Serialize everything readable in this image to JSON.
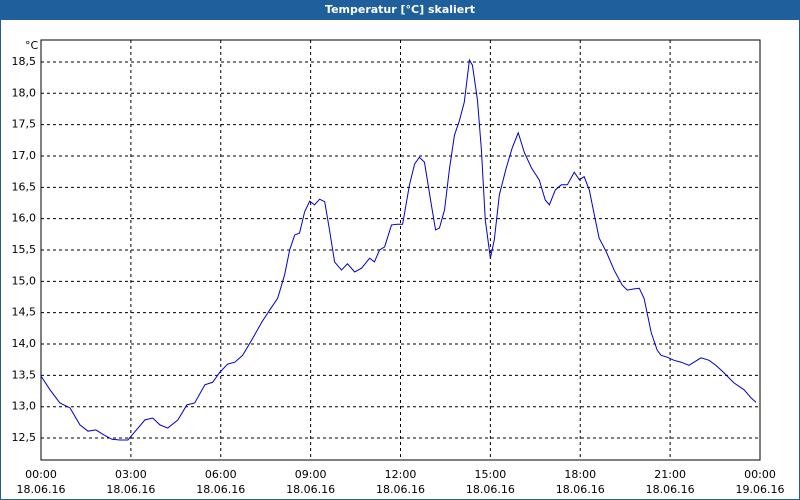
{
  "chart_data": {
    "type": "line",
    "title": "Temperatur [°C] skaliert",
    "y_unit": "°C",
    "x": [
      0,
      0.3,
      0.63,
      0.97,
      1.3,
      1.57,
      1.83,
      2.1,
      2.37,
      2.63,
      2.9,
      3.13,
      3.47,
      3.73,
      3.97,
      4.23,
      4.57,
      4.87,
      5.13,
      5.47,
      5.73,
      5.97,
      6.23,
      6.47,
      6.73,
      7.03,
      7.37,
      7.63,
      7.9,
      8.13,
      8.3,
      8.47,
      8.63,
      8.8,
      8.97,
      9.13,
      9.3,
      9.47,
      9.63,
      9.8,
      10.03,
      10.23,
      10.47,
      10.7,
      10.97,
      11.13,
      11.3,
      11.47,
      11.7,
      11.9,
      12.07,
      12.3,
      12.47,
      12.63,
      12.8,
      13.03,
      13.17,
      13.3,
      13.47,
      13.63,
      13.8,
      13.97,
      14.13,
      14.3,
      14.4,
      14.57,
      14.7,
      14.83,
      15,
      15.13,
      15.3,
      15.53,
      15.73,
      15.93,
      16.13,
      16.37,
      16.63,
      16.83,
      16.97,
      17.17,
      17.37,
      17.57,
      17.8,
      17.97,
      18.13,
      18.3,
      18.47,
      18.63,
      18.87,
      19.13,
      19.4,
      19.57,
      19.8,
      19.97,
      20.13,
      20.37,
      20.57,
      20.7,
      20.9,
      21.13,
      21.37,
      21.63,
      21.8,
      22.03,
      22.3,
      22.53,
      22.8,
      23.13,
      23.47,
      23.7,
      23.87
    ],
    "series": [
      {
        "color": "#0000cc",
        "values": [
          13.49,
          13.27,
          13.06,
          12.98,
          12.71,
          12.61,
          12.63,
          12.55,
          12.48,
          12.47,
          12.47,
          12.6,
          12.79,
          12.82,
          12.71,
          12.66,
          12.79,
          13.03,
          13.06,
          13.35,
          13.39,
          13.55,
          13.68,
          13.71,
          13.82,
          14.06,
          14.35,
          14.54,
          14.73,
          15.1,
          15.5,
          15.74,
          15.77,
          16.11,
          16.28,
          16.22,
          16.31,
          16.27,
          15.82,
          15.31,
          15.18,
          15.28,
          15.15,
          15.21,
          15.37,
          15.31,
          15.5,
          15.55,
          15.9,
          15.91,
          15.91,
          16.54,
          16.87,
          16.98,
          16.9,
          16.22,
          15.82,
          15.85,
          16.14,
          16.78,
          17.33,
          17.57,
          17.86,
          18.53,
          18.45,
          17.89,
          17.1,
          15.98,
          15.37,
          15.66,
          16.38,
          16.81,
          17.13,
          17.37,
          17.06,
          16.81,
          16.62,
          16.3,
          16.22,
          16.46,
          16.54,
          16.54,
          16.74,
          16.62,
          16.67,
          16.46,
          16.06,
          15.69,
          15.47,
          15.18,
          14.94,
          14.86,
          14.88,
          14.89,
          14.73,
          14.18,
          13.9,
          13.82,
          13.79,
          13.74,
          13.71,
          13.66,
          13.71,
          13.78,
          13.74,
          13.66,
          13.54,
          13.38,
          13.27,
          13.14,
          13.07
        ]
      }
    ],
    "xlim": [
      0,
      24
    ],
    "xticks": [
      {
        "value": 0,
        "label": "00:00\n18.06.16"
      },
      {
        "value": 3,
        "label": "03:00\n18.06.16"
      },
      {
        "value": 6,
        "label": "06:00\n18.06.16"
      },
      {
        "value": 9,
        "label": "09:00\n18.06.16"
      },
      {
        "value": 12,
        "label": "12:00\n18.06.16"
      },
      {
        "value": 15,
        "label": "15:00\n18.06.16"
      },
      {
        "value": 18,
        "label": "18:00\n18.06.16"
      },
      {
        "value": 21,
        "label": "21:00\n18.06.16"
      },
      {
        "value": 24,
        "label": "00:00\n19.06.16"
      }
    ],
    "ylim": [
      12.15,
      18.85
    ],
    "yticks": [
      {
        "value": 12.5,
        "label": "12,5"
      },
      {
        "value": 13,
        "label": "13,0"
      },
      {
        "value": 13.5,
        "label": "13,5"
      },
      {
        "value": 14,
        "label": "14,0"
      },
      {
        "value": 14.5,
        "label": "14,5"
      },
      {
        "value": 15,
        "label": "15,0"
      },
      {
        "value": 15.5,
        "label": "15,5"
      },
      {
        "value": 16,
        "label": "16,0"
      },
      {
        "value": 16.5,
        "label": "16,5"
      },
      {
        "value": 17,
        "label": "17,0"
      },
      {
        "value": 17.5,
        "label": "17,5"
      },
      {
        "value": 18,
        "label": "18,0"
      },
      {
        "value": 18.5,
        "label": "18,5"
      }
    ],
    "grid": true
  }
}
